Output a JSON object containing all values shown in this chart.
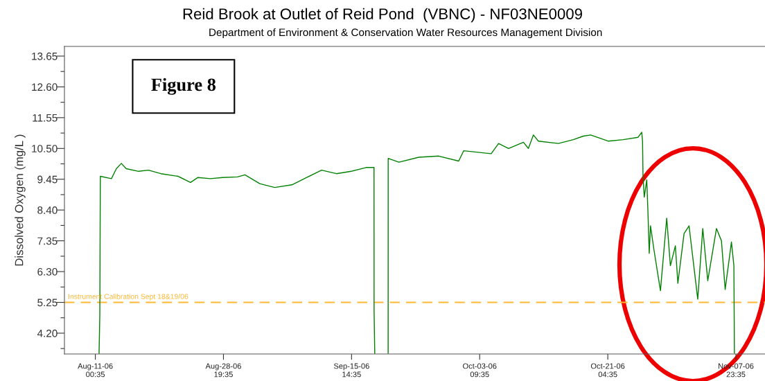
{
  "chart_data": {
    "type": "line",
    "title": "Reid Brook at Outlet of Reid Pond  (VBNC) - NF03NE0009",
    "subtitle": "Department of Environment & Conservation Water Resources Management Division",
    "ylabel": "Dissolved Oxygen (mg/L )",
    "annotations": [
      "Figure 8"
    ],
    "x": [
      "2006-08-11T13:00",
      "2006-08-11T15:30",
      "2006-08-11T17:10",
      "2006-08-13T06:10",
      "2006-08-13T22:40",
      "2006-08-14T15:10",
      "2006-08-15T07:30",
      "2006-08-17T00:50",
      "2006-08-18T09:40",
      "2006-08-20T03:00",
      "2006-08-22T12:35",
      "2006-08-24T05:50",
      "2006-08-25T06:35",
      "2006-08-27T00:00",
      "2006-08-28T16:55",
      "2006-08-30T18:35",
      "2006-08-31T19:20",
      "2006-09-02T20:45",
      "2006-09-04T22:10",
      "2006-09-07T07:50",
      "2006-09-09T09:15",
      "2006-09-11T10:40",
      "2006-09-13T12:05",
      "2006-09-15T13:35",
      "2006-09-17T15:00",
      "2006-09-18T17:25",
      "2006-09-18T17:40",
      "2006-09-18T19:50",
      "2006-09-19T18:00",
      "2006-09-20T16:30",
      "2006-09-20T16:40",
      "2006-09-22T04:25",
      "2006-09-24T22:40",
      "2006-09-27T17:10",
      "2006-09-30T11:40",
      "2006-10-01T04:10",
      "2006-10-05T00:00",
      "2006-10-06T00:35",
      "2006-10-07T09:45",
      "2006-10-09T11:25",
      "2006-10-10T03:55",
      "2006-10-10T20:45",
      "2006-10-11T13:20",
      "2006-10-14T07:45",
      "2006-10-16T09:25",
      "2006-10-17T18:50",
      "2006-10-18T19:45",
      "2006-10-21T05:35",
      "2006-10-23T07:35",
      "2006-10-25T09:30",
      "2006-10-25T21:45",
      "2006-10-26T00:25",
      "2006-10-26T02:00",
      "2006-10-26T06:05",
      "2006-10-26T14:30",
      "2006-10-26T18:35",
      "2006-10-26T22:40",
      "2006-10-27T03:00",
      "2006-10-27T15:00",
      "2006-10-28T12:05",
      "2006-10-29T09:00",
      "2006-10-29T21:15",
      "2006-10-30T13:50",
      "2006-10-30T22:10",
      "2006-10-31T18:50",
      "2006-11-01T11:25",
      "2006-11-02T16:25",
      "2006-11-03T09:10",
      "2006-11-04T01:50",
      "2006-11-05T06:50",
      "2006-11-05T23:25",
      "2006-11-06T11:50",
      "2006-11-07T08:45",
      "2006-11-07T16:55",
      "2006-11-07T18:35"
    ],
    "series": [
      {
        "color": "#008000",
        "values": [
          3.51,
          4.83,
          9.55,
          9.47,
          9.81,
          9.99,
          9.81,
          9.72,
          9.76,
          9.64,
          9.55,
          9.34,
          9.51,
          9.47,
          9.51,
          9.53,
          9.6,
          9.3,
          9.17,
          9.26,
          9.51,
          9.76,
          9.64,
          9.72,
          9.85,
          9.85,
          4.96,
          3.51,
          null,
          3.51,
          10.16,
          10.03,
          10.2,
          10.24,
          10.07,
          10.42,
          10.32,
          10.67,
          10.5,
          10.71,
          10.5,
          10.96,
          10.75,
          10.67,
          10.8,
          10.92,
          10.96,
          10.75,
          10.8,
          10.88,
          11.05,
          10.75,
          9.57,
          8.84,
          9.43,
          8.29,
          6.92,
          7.86,
          7.01,
          5.65,
          8.12,
          6.5,
          7.18,
          5.9,
          7.6,
          7.86,
          5.36,
          7.77,
          5.99,
          7.77,
          7.35,
          5.69,
          7.31,
          6.5,
          3.52
        ]
      }
    ],
    "ref_lines": [
      {
        "axis": "y",
        "value": 5.25,
        "label": "Instrument Calibration Sept 18&19/06",
        "color": "#ffb733",
        "line_style": "dashed"
      }
    ],
    "xlim": [
      "2006-08-06T17:35",
      "2006-11-12T00:35"
    ],
    "xticks": [
      {
        "value": "2006-08-11T00:35",
        "label": "Aug-11-06\n00:35"
      },
      {
        "value": "2006-08-28T19:35",
        "label": "Aug-28-06\n19:35"
      },
      {
        "value": "2006-09-15T14:35",
        "label": "Sep-15-06\n14:35"
      },
      {
        "value": "2006-10-03T09:35",
        "label": "Oct-03-06\n09:35"
      },
      {
        "value": "2006-10-21T04:35",
        "label": "Oct-21-06\n04:35"
      },
      {
        "value": "2006-11-07T23:35",
        "label": "Nov-07-06\n23:35"
      }
    ],
    "ylim": [
      3.49,
      13.98
    ],
    "yticks": [
      {
        "value": 3.675,
        "label": null
      },
      {
        "value": 4.2,
        "label": "4.20"
      },
      {
        "value": 4.725,
        "label": null
      },
      {
        "value": 5.25,
        "label": "5.25"
      },
      {
        "value": 5.775,
        "label": null
      },
      {
        "value": 6.3,
        "label": "6.30"
      },
      {
        "value": 6.825,
        "label": null
      },
      {
        "value": 7.35,
        "label": "7.35"
      },
      {
        "value": 7.875,
        "label": null
      },
      {
        "value": 8.4,
        "label": "8.40"
      },
      {
        "value": 8.925,
        "label": null
      },
      {
        "value": 9.45,
        "label": "9.45"
      },
      {
        "value": 9.975,
        "label": null
      },
      {
        "value": 10.5,
        "label": "10.50"
      },
      {
        "value": 11.025,
        "label": null
      },
      {
        "value": 11.55,
        "label": "11.55"
      },
      {
        "value": 12.075,
        "label": null
      },
      {
        "value": 12.6,
        "label": "12.60"
      },
      {
        "value": 13.125,
        "label": null
      },
      {
        "value": 13.65,
        "label": "13.65"
      }
    ],
    "grid": false,
    "legend": false,
    "marker": "none",
    "line_style": "solid"
  }
}
